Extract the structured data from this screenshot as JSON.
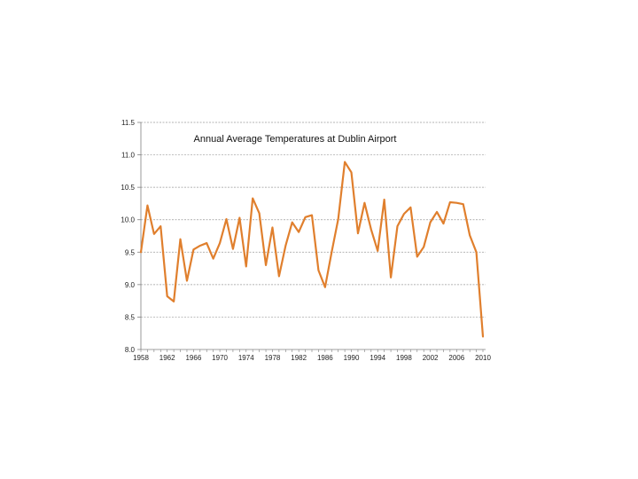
{
  "chart_data": {
    "type": "line",
    "title": "Annual Average Temperatures at Dublin Airport",
    "xlabel": "",
    "ylabel": "",
    "xlim": [
      1958,
      2010
    ],
    "ylim": [
      8.0,
      11.5
    ],
    "x_ticks": [
      1958,
      1962,
      1966,
      1970,
      1974,
      1978,
      1982,
      1986,
      1990,
      1994,
      1998,
      2002,
      2006,
      2010
    ],
    "y_ticks": [
      "8.0",
      "8.5",
      "9.0",
      "9.5",
      "10.0",
      "10.5",
      "11.0",
      "11.5"
    ],
    "grid": {
      "horizontal": true,
      "style": "dashed"
    },
    "legend": "none",
    "series": [
      {
        "color": "#E07F2D",
        "x": [
          1958,
          1959,
          1960,
          1961,
          1962,
          1963,
          1964,
          1965,
          1966,
          1967,
          1968,
          1969,
          1970,
          1971,
          1972,
          1973,
          1974,
          1975,
          1976,
          1977,
          1978,
          1979,
          1980,
          1981,
          1982,
          1983,
          1984,
          1985,
          1986,
          1987,
          1988,
          1989,
          1990,
          1991,
          1992,
          1993,
          1994,
          1995,
          1996,
          1997,
          1998,
          1999,
          2000,
          2001,
          2002,
          2003,
          2004,
          2005,
          2006,
          2007,
          2008,
          2009,
          2010
        ],
        "values": [
          9.5,
          10.22,
          9.78,
          9.9,
          8.82,
          8.74,
          9.7,
          9.06,
          9.54,
          9.6,
          9.64,
          9.4,
          9.64,
          10.01,
          9.55,
          10.03,
          9.28,
          10.33,
          10.1,
          9.3,
          9.88,
          9.13,
          9.6,
          9.96,
          9.81,
          10.04,
          10.07,
          9.22,
          8.96,
          9.5,
          10.01,
          10.89,
          10.73,
          9.79,
          10.26,
          9.85,
          9.52,
          10.31,
          9.11,
          9.9,
          10.09,
          10.19,
          9.43,
          9.58,
          9.96,
          10.12,
          9.94,
          10.27,
          10.26,
          10.24,
          9.76,
          9.5,
          8.2
        ]
      }
    ]
  }
}
